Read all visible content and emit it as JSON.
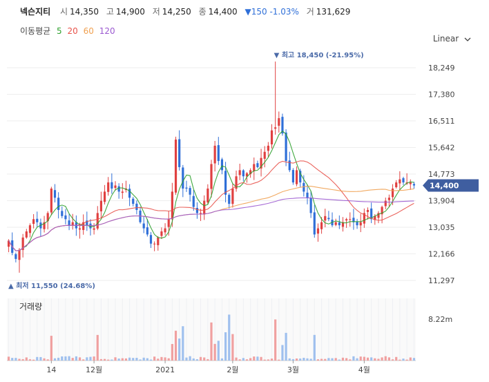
{
  "header": {
    "name": "넥슨지티",
    "open_label": "시",
    "open": "14,350",
    "high_label": "고",
    "high": "14,900",
    "low_label": "저",
    "low": "14,250",
    "close_label": "종",
    "close": "14,400",
    "change": "▼150 -1.03%",
    "volume_label": "거",
    "volume": "131,629"
  },
  "ma_legend": {
    "label": "이동평균",
    "periods": [
      {
        "value": "5",
        "color": "#2ca02c"
      },
      {
        "value": "20",
        "color": "#e8524a"
      },
      {
        "value": "60",
        "color": "#f0a050"
      },
      {
        "value": "120",
        "color": "#9b59d0"
      }
    ]
  },
  "scale_toggle": {
    "label": "Linear",
    "icon": "chevron-down-icon"
  },
  "volume_panel": {
    "title": "거래량",
    "max_label": "8.22m"
  },
  "chart_data": {
    "type": "candlestick",
    "y_ticks": [
      "18,249",
      "17,380",
      "16,511",
      "15,642",
      "14,773",
      "13,904",
      "13,035",
      "12,166",
      "11,297"
    ],
    "y_tick_values": [
      18249,
      17380,
      16511,
      15642,
      14773,
      13904,
      13035,
      12166,
      11297
    ],
    "ylim": [
      11297,
      18249
    ],
    "x_ticks": [
      {
        "label": "14",
        "index": 12
      },
      {
        "label": "12월",
        "index": 24
      },
      {
        "label": "2021",
        "index": 44
      },
      {
        "label": "2월",
        "index": 63
      },
      {
        "label": "3월",
        "index": 80
      },
      {
        "label": "4월",
        "index": 100
      }
    ],
    "current_price": 14400,
    "current_price_label": "14,400",
    "high_marker": {
      "index": 75,
      "price": 18450,
      "text": "▼ 최고 18,450 (-21.95%)"
    },
    "low_marker": {
      "index": 3,
      "price": 11550,
      "text": "▲ 최저 11,550 (24.68%)"
    },
    "volume_max": 8.22,
    "up_color": "#e04040",
    "down_color": "#2f6fd8",
    "closes": [
      12600,
      12200,
      12000,
      12300,
      12700,
      12900,
      13100,
      13300,
      13200,
      13000,
      13200,
      13500,
      14300,
      14000,
      13600,
      13400,
      13300,
      13100,
      13200,
      13000,
      13000,
      13200,
      13100,
      13000,
      13000,
      13500,
      13900,
      14200,
      14500,
      14300,
      14400,
      14200,
      14200,
      14300,
      14000,
      13800,
      13600,
      13200,
      13000,
      12800,
      12500,
      12500,
      12700,
      12900,
      13000,
      13300,
      14200,
      15900,
      15000,
      14300,
      14300,
      14100,
      13700,
      13500,
      13500,
      13900,
      14300,
      15100,
      15700,
      15200,
      14900,
      14100,
      13800,
      14300,
      14700,
      14900,
      14700,
      14800,
      14900,
      15100,
      15000,
      15300,
      15500,
      15700,
      16200,
      16300,
      16600,
      16100,
      15200,
      14900,
      14500,
      14900,
      14500,
      14200,
      14000,
      13500,
      12800,
      13000,
      13200,
      13400,
      13300,
      13100,
      13200,
      13100,
      13200,
      13300,
      13300,
      13200,
      13100,
      13200,
      13500,
      13600,
      13300,
      13400,
      13500,
      13700,
      13900,
      14000,
      14300,
      14500,
      14600,
      14500,
      14500,
      14500,
      14400
    ]
  }
}
